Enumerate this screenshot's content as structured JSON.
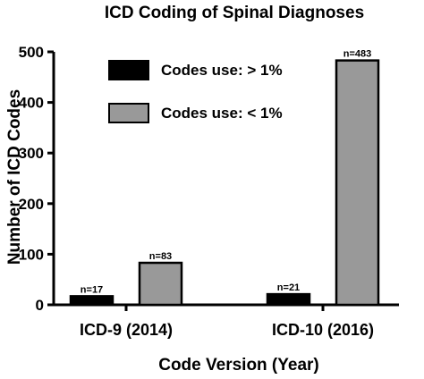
{
  "chart_data": {
    "type": "bar",
    "title": "ICD Coding of Spinal Diagnoses",
    "xlabel": "Code Version (Year)",
    "ylabel": "Number of ICD Codes",
    "categories": [
      "ICD-9 (2014)",
      "ICD-10 (2016)"
    ],
    "ylim": [
      0,
      500
    ],
    "yticks": [
      0,
      100,
      200,
      300,
      400,
      500
    ],
    "grid": false,
    "legend_position": "top-left",
    "series": [
      {
        "name": "Codes use: > 1%",
        "color": "#000000",
        "values": [
          17,
          21
        ],
        "labels": [
          "n=17",
          "n=21"
        ]
      },
      {
        "name": "Codes use: < 1%",
        "color": "#999999",
        "values": [
          83,
          483
        ],
        "labels": [
          "n=83",
          "n=483"
        ]
      }
    ]
  }
}
